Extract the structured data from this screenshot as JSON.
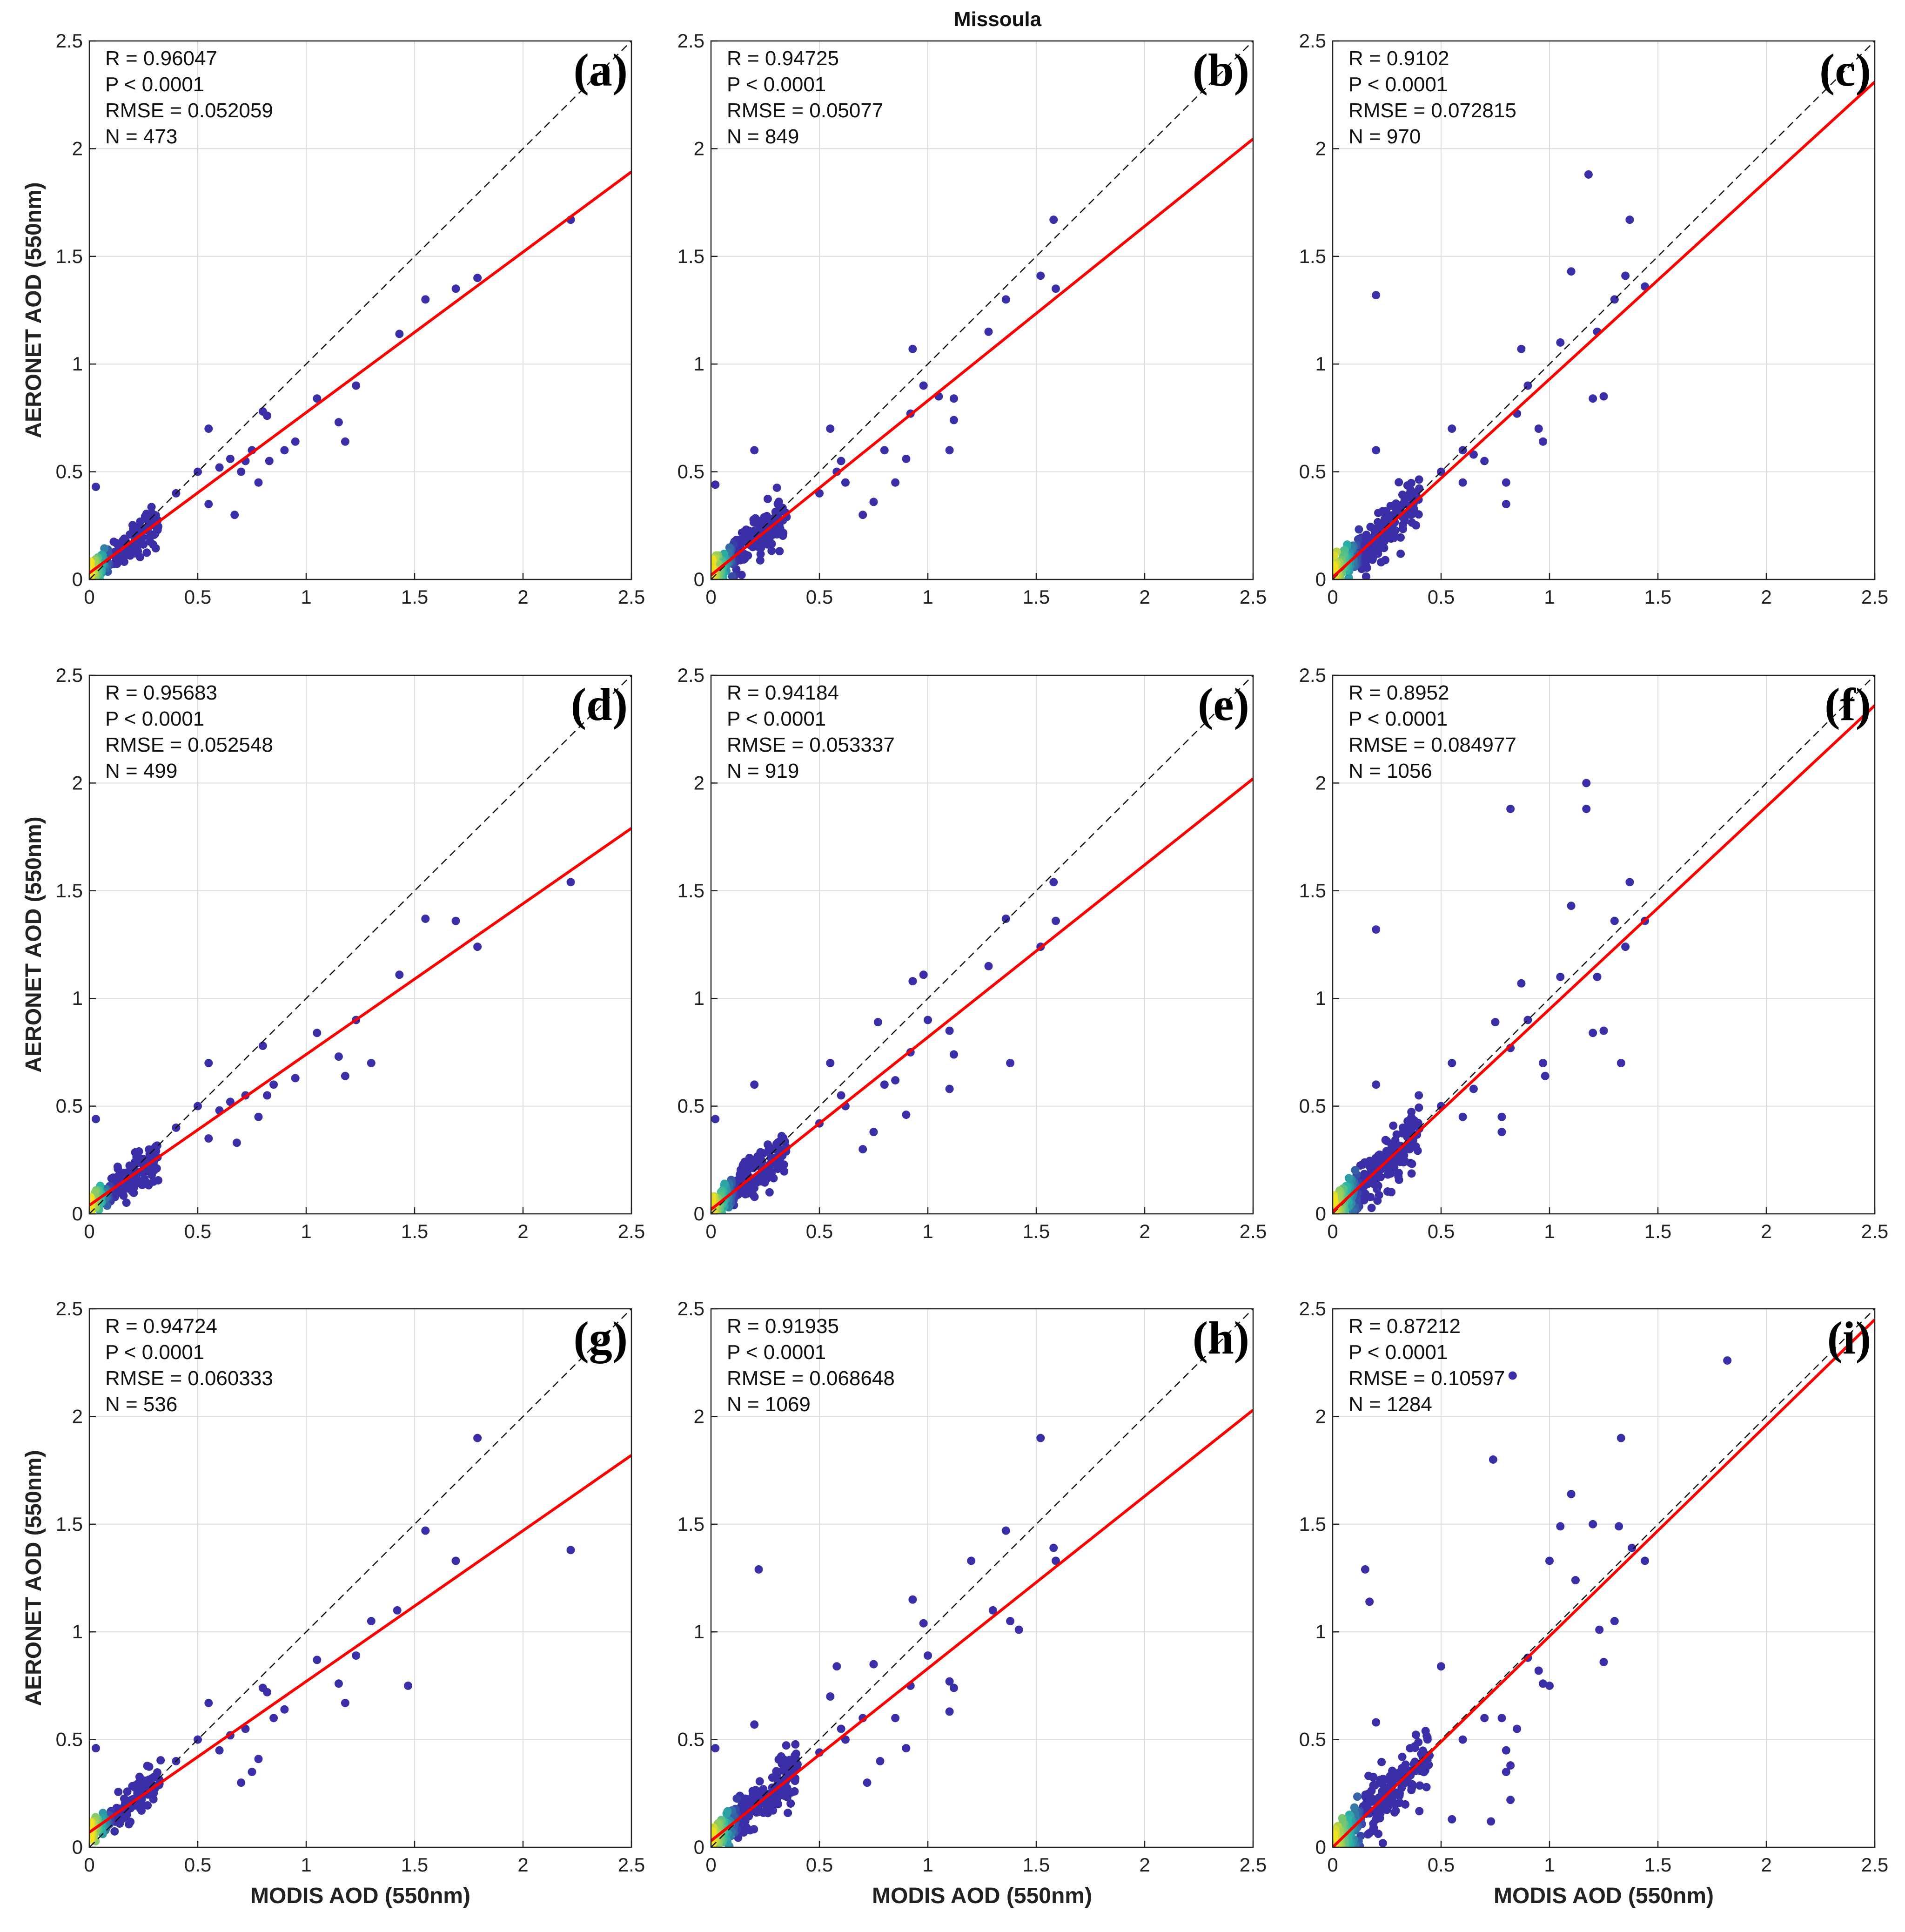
{
  "figure_title": "Missoula",
  "colors": {
    "fit_line": "#ff0000",
    "identity_line": "#111111",
    "point": "#3b2fa8",
    "grid": "#dcdcdc",
    "axis": "#222222",
    "density_low": "#3b2fa8",
    "density_mid": "#2bb6a5",
    "density_high": "#f4e21f"
  },
  "chart_data": [
    {
      "type": "scatter",
      "panel": "(a)",
      "title": "Missoula",
      "xlabel": "",
      "ylabel": "AERONET AOD (550nm)",
      "xlim": [
        0,
        2.5
      ],
      "ylim": [
        0,
        2.5
      ],
      "xticks": [
        "0",
        "0.5",
        "1",
        "1.5",
        "2",
        "2.5"
      ],
      "yticks": [
        "0",
        "0.5",
        "1",
        "1.5",
        "2",
        "2.5"
      ],
      "stats": [
        "R = 0.96047",
        "P < 0.0001",
        "RMSE = 0.052059",
        "N = 473"
      ],
      "fit": {
        "slope": 0.745,
        "intercept": 0.03
      },
      "dense": {
        "xmax": 0.32,
        "count": 180,
        "spread": 0.045
      },
      "highlight_points": [
        [
          0.03,
          0.43
        ],
        [
          0.55,
          0.7
        ],
        [
          0.8,
          0.78
        ],
        [
          0.82,
          0.76
        ],
        [
          1.05,
          0.84
        ],
        [
          1.15,
          0.73
        ],
        [
          1.18,
          0.64
        ],
        [
          1.23,
          0.9
        ],
        [
          1.43,
          1.14
        ],
        [
          1.55,
          1.3
        ],
        [
          1.69,
          1.35
        ],
        [
          1.79,
          1.4
        ],
        [
          2.22,
          1.67
        ],
        [
          0.5,
          0.5
        ],
        [
          0.6,
          0.52
        ],
        [
          0.65,
          0.56
        ],
        [
          0.67,
          0.3
        ],
        [
          0.72,
          0.55
        ],
        [
          0.78,
          0.45
        ],
        [
          0.83,
          0.55
        ],
        [
          0.95,
          0.64
        ],
        [
          0.4,
          0.4
        ],
        [
          0.55,
          0.35
        ],
        [
          0.7,
          0.5
        ],
        [
          0.75,
          0.6
        ],
        [
          0.9,
          0.6
        ]
      ]
    },
    {
      "type": "scatter",
      "panel": "(b)",
      "title": "Missoula",
      "xlabel": "",
      "ylabel": "",
      "xlim": [
        0,
        2.5
      ],
      "ylim": [
        0,
        2.5
      ],
      "xticks": [
        "0",
        "0.5",
        "1",
        "1.5",
        "2",
        "2.5"
      ],
      "yticks": [
        "0",
        "0.5",
        "1",
        "1.5",
        "2",
        "2.5"
      ],
      "stats": [
        "R = 0.94725",
        "P < 0.0001",
        "RMSE = 0.05077",
        "N = 849"
      ],
      "fit": {
        "slope": 0.81,
        "intercept": 0.02
      },
      "dense": {
        "xmax": 0.35,
        "count": 260,
        "spread": 0.05
      },
      "highlight_points": [
        [
          0.02,
          0.44
        ],
        [
          0.2,
          0.6
        ],
        [
          0.55,
          0.7
        ],
        [
          0.6,
          0.55
        ],
        [
          0.7,
          0.3
        ],
        [
          0.75,
          0.36
        ],
        [
          0.8,
          0.6
        ],
        [
          0.85,
          0.45
        ],
        [
          0.9,
          0.56
        ],
        [
          0.92,
          0.77
        ],
        [
          0.93,
          1.07
        ],
        [
          0.98,
          0.9
        ],
        [
          1.05,
          0.85
        ],
        [
          1.1,
          0.6
        ],
        [
          1.12,
          0.74
        ],
        [
          1.12,
          0.84
        ],
        [
          1.28,
          1.15
        ],
        [
          1.36,
          1.3
        ],
        [
          1.52,
          1.41
        ],
        [
          1.58,
          1.67
        ],
        [
          1.59,
          1.35
        ],
        [
          0.5,
          0.4
        ],
        [
          0.58,
          0.5
        ],
        [
          0.62,
          0.45
        ]
      ]
    },
    {
      "type": "scatter",
      "panel": "(c)",
      "title": "Missoula",
      "xlabel": "",
      "ylabel": "",
      "xlim": [
        0,
        2.5
      ],
      "ylim": [
        0,
        2.5
      ],
      "xticks": [
        "0",
        "0.5",
        "1",
        "1.5",
        "2",
        "2.5"
      ],
      "yticks": [
        "0",
        "0.5",
        "1",
        "1.5",
        "2",
        "2.5"
      ],
      "stats": [
        "R = 0.9102",
        "P < 0.0001",
        "RMSE = 0.072815",
        "N = 970"
      ],
      "fit": {
        "slope": 0.92,
        "intercept": 0.01
      },
      "dense": {
        "xmax": 0.4,
        "count": 300,
        "spread": 0.06
      },
      "highlight_points": [
        [
          0.2,
          1.32
        ],
        [
          0.2,
          0.6
        ],
        [
          0.5,
          0.5
        ],
        [
          0.55,
          0.7
        ],
        [
          0.6,
          0.45
        ],
        [
          0.7,
          0.55
        ],
        [
          0.8,
          0.45
        ],
        [
          0.8,
          0.35
        ],
        [
          0.85,
          0.77
        ],
        [
          0.87,
          1.07
        ],
        [
          0.9,
          0.9
        ],
        [
          0.95,
          0.7
        ],
        [
          0.97,
          0.64
        ],
        [
          1.05,
          1.1
        ],
        [
          1.1,
          1.43
        ],
        [
          1.18,
          1.88
        ],
        [
          1.2,
          0.84
        ],
        [
          1.22,
          1.15
        ],
        [
          1.25,
          0.85
        ],
        [
          1.3,
          1.3
        ],
        [
          1.35,
          1.41
        ],
        [
          1.37,
          1.67
        ],
        [
          1.44,
          1.36
        ],
        [
          0.6,
          0.6
        ],
        [
          0.65,
          0.58
        ]
      ]
    },
    {
      "type": "scatter",
      "panel": "(d)",
      "title": "Missoula",
      "xlabel": "",
      "ylabel": "AERONET AOD (550nm)",
      "xlim": [
        0,
        2.5
      ],
      "ylim": [
        0,
        2.5
      ],
      "xticks": [
        "0",
        "0.5",
        "1",
        "1.5",
        "2",
        "2.5"
      ],
      "yticks": [
        "0",
        "0.5",
        "1",
        "1.5",
        "2",
        "2.5"
      ],
      "stats": [
        "R = 0.95683",
        "P < 0.0001",
        "RMSE = 0.052548",
        "N = 499"
      ],
      "fit": {
        "slope": 0.7,
        "intercept": 0.04
      },
      "dense": {
        "xmax": 0.32,
        "count": 190,
        "spread": 0.045
      },
      "highlight_points": [
        [
          0.03,
          0.44
        ],
        [
          0.55,
          0.7
        ],
        [
          0.5,
          0.5
        ],
        [
          0.6,
          0.48
        ],
        [
          0.65,
          0.52
        ],
        [
          0.68,
          0.33
        ],
        [
          0.72,
          0.55
        ],
        [
          0.78,
          0.45
        ],
        [
          0.8,
          0.78
        ],
        [
          0.82,
          0.55
        ],
        [
          0.85,
          0.6
        ],
        [
          0.95,
          0.63
        ],
        [
          1.05,
          0.84
        ],
        [
          1.15,
          0.73
        ],
        [
          1.18,
          0.64
        ],
        [
          1.23,
          0.9
        ],
        [
          1.3,
          0.7
        ],
        [
          1.43,
          1.11
        ],
        [
          1.55,
          1.37
        ],
        [
          1.69,
          1.36
        ],
        [
          1.79,
          1.24
        ],
        [
          2.22,
          1.54
        ],
        [
          0.4,
          0.4
        ],
        [
          0.55,
          0.35
        ]
      ]
    },
    {
      "type": "scatter",
      "panel": "(e)",
      "title": "Missoula",
      "xlabel": "",
      "ylabel": "",
      "xlim": [
        0,
        2.5
      ],
      "ylim": [
        0,
        2.5
      ],
      "xticks": [
        "0",
        "0.5",
        "1",
        "1.5",
        "2",
        "2.5"
      ],
      "yticks": [
        "0",
        "0.5",
        "1",
        "1.5",
        "2",
        "2.5"
      ],
      "stats": [
        "R = 0.94184",
        "P < 0.0001",
        "RMSE = 0.053337",
        "N = 919"
      ],
      "fit": {
        "slope": 0.8,
        "intercept": 0.02
      },
      "dense": {
        "xmax": 0.35,
        "count": 280,
        "spread": 0.05
      },
      "highlight_points": [
        [
          0.02,
          0.44
        ],
        [
          0.2,
          0.6
        ],
        [
          0.55,
          0.7
        ],
        [
          0.6,
          0.55
        ],
        [
          0.7,
          0.3
        ],
        [
          0.75,
          0.38
        ],
        [
          0.77,
          0.89
        ],
        [
          0.8,
          0.6
        ],
        [
          0.85,
          0.62
        ],
        [
          0.9,
          0.46
        ],
        [
          0.92,
          0.75
        ],
        [
          0.93,
          1.08
        ],
        [
          0.98,
          1.11
        ],
        [
          1.0,
          0.9
        ],
        [
          1.1,
          0.85
        ],
        [
          1.1,
          0.58
        ],
        [
          1.12,
          0.74
        ],
        [
          1.28,
          1.15
        ],
        [
          1.36,
          1.37
        ],
        [
          1.38,
          0.7
        ],
        [
          1.52,
          1.24
        ],
        [
          1.58,
          1.54
        ],
        [
          1.59,
          1.36
        ],
        [
          0.5,
          0.42
        ],
        [
          0.62,
          0.5
        ]
      ]
    },
    {
      "type": "scatter",
      "panel": "(f)",
      "title": "Missoula",
      "xlabel": "",
      "ylabel": "",
      "xlim": [
        0,
        2.5
      ],
      "ylim": [
        0,
        2.5
      ],
      "xticks": [
        "0",
        "0.5",
        "1",
        "1.5",
        "2",
        "2.5"
      ],
      "yticks": [
        "0",
        "0.5",
        "1",
        "1.5",
        "2",
        "2.5"
      ],
      "stats": [
        "R = 0.8952",
        "P < 0.0001",
        "RMSE = 0.084977",
        "N = 1056"
      ],
      "fit": {
        "slope": 0.94,
        "intercept": 0.01
      },
      "dense": {
        "xmax": 0.4,
        "count": 320,
        "spread": 0.06
      },
      "highlight_points": [
        [
          0.2,
          1.32
        ],
        [
          0.2,
          0.6
        ],
        [
          0.5,
          0.5
        ],
        [
          0.55,
          0.7
        ],
        [
          0.6,
          0.45
        ],
        [
          0.75,
          0.89
        ],
        [
          0.78,
          0.45
        ],
        [
          0.78,
          0.38
        ],
        [
          0.82,
          1.88
        ],
        [
          0.82,
          0.77
        ],
        [
          0.87,
          1.07
        ],
        [
          0.9,
          0.9
        ],
        [
          0.97,
          0.7
        ],
        [
          0.98,
          0.64
        ],
        [
          1.05,
          1.1
        ],
        [
          1.1,
          1.43
        ],
        [
          1.17,
          2.0
        ],
        [
          1.17,
          1.88
        ],
        [
          1.2,
          0.84
        ],
        [
          1.22,
          1.1
        ],
        [
          1.25,
          0.85
        ],
        [
          1.3,
          1.36
        ],
        [
          1.33,
          0.7
        ],
        [
          1.35,
          1.24
        ],
        [
          1.37,
          1.54
        ],
        [
          1.44,
          1.36
        ],
        [
          0.65,
          0.58
        ]
      ]
    },
    {
      "type": "scatter",
      "panel": "(g)",
      "title": "Missoula",
      "xlabel": "MODIS AOD (550nm)",
      "ylabel": "AERONET AOD (550nm)",
      "xlim": [
        0,
        2.5
      ],
      "ylim": [
        0,
        2.5
      ],
      "xticks": [
        "0",
        "0.5",
        "1",
        "1.5",
        "2",
        "2.5"
      ],
      "yticks": [
        "0",
        "0.5",
        "1",
        "1.5",
        "2",
        "2.5"
      ],
      "stats": [
        "R = 0.94724",
        "P < 0.0001",
        "RMSE = 0.060333",
        "N = 536"
      ],
      "fit": {
        "slope": 0.7,
        "intercept": 0.07
      },
      "dense": {
        "xmax": 0.33,
        "count": 200,
        "spread": 0.045
      },
      "highlight_points": [
        [
          0.03,
          0.46
        ],
        [
          0.55,
          0.67
        ],
        [
          0.5,
          0.5
        ],
        [
          0.6,
          0.45
        ],
        [
          0.65,
          0.52
        ],
        [
          0.7,
          0.3
        ],
        [
          0.72,
          0.55
        ],
        [
          0.75,
          0.35
        ],
        [
          0.78,
          0.41
        ],
        [
          0.8,
          0.74
        ],
        [
          0.82,
          0.72
        ],
        [
          0.85,
          0.6
        ],
        [
          0.9,
          0.64
        ],
        [
          1.05,
          0.87
        ],
        [
          1.15,
          0.76
        ],
        [
          1.18,
          0.67
        ],
        [
          1.23,
          0.89
        ],
        [
          1.3,
          1.05
        ],
        [
          1.42,
          1.1
        ],
        [
          1.47,
          0.75
        ],
        [
          1.55,
          1.47
        ],
        [
          1.69,
          1.33
        ],
        [
          1.79,
          1.9
        ],
        [
          2.22,
          1.38
        ],
        [
          0.4,
          0.4
        ]
      ]
    },
    {
      "type": "scatter",
      "panel": "(h)",
      "title": "Missoula",
      "xlabel": "MODIS AOD (550nm)",
      "ylabel": "",
      "xlim": [
        0,
        2.5
      ],
      "ylim": [
        0,
        2.5
      ],
      "xticks": [
        "0",
        "0.5",
        "1",
        "1.5",
        "2",
        "2.5"
      ],
      "yticks": [
        "0",
        "0.5",
        "1",
        "1.5",
        "2",
        "2.5"
      ],
      "stats": [
        "R = 0.91935",
        "P < 0.0001",
        "RMSE = 0.068648",
        "N = 1069"
      ],
      "fit": {
        "slope": 0.8,
        "intercept": 0.03
      },
      "dense": {
        "xmax": 0.4,
        "count": 330,
        "spread": 0.055
      },
      "highlight_points": [
        [
          0.22,
          1.29
        ],
        [
          0.02,
          0.46
        ],
        [
          0.2,
          0.57
        ],
        [
          0.55,
          0.7
        ],
        [
          0.58,
          0.84
        ],
        [
          0.6,
          0.55
        ],
        [
          0.7,
          0.6
        ],
        [
          0.72,
          0.3
        ],
        [
          0.75,
          0.85
        ],
        [
          0.78,
          0.4
        ],
        [
          0.85,
          0.6
        ],
        [
          0.9,
          0.46
        ],
        [
          0.92,
          0.75
        ],
        [
          0.93,
          1.15
        ],
        [
          0.98,
          1.04
        ],
        [
          1.0,
          0.89
        ],
        [
          1.1,
          0.77
        ],
        [
          1.1,
          0.63
        ],
        [
          1.12,
          0.74
        ],
        [
          1.2,
          1.33
        ],
        [
          1.3,
          1.1
        ],
        [
          1.36,
          1.47
        ],
        [
          1.38,
          1.05
        ],
        [
          1.42,
          1.01
        ],
        [
          1.52,
          1.9
        ],
        [
          1.58,
          1.39
        ],
        [
          1.59,
          1.33
        ],
        [
          0.5,
          0.44
        ],
        [
          0.62,
          0.5
        ]
      ]
    },
    {
      "type": "scatter",
      "panel": "(i)",
      "title": "Missoula",
      "xlabel": "MODIS AOD (550nm)",
      "ylabel": "",
      "xlim": [
        0,
        2.5
      ],
      "ylim": [
        0,
        2.5
      ],
      "xticks": [
        "0",
        "0.5",
        "1",
        "1.5",
        "2",
        "2.5"
      ],
      "yticks": [
        "0",
        "0.5",
        "1",
        "1.5",
        "2",
        "2.5"
      ],
      "stats": [
        "R = 0.87212",
        "P < 0.0001",
        "RMSE = 0.10597",
        "N = 1284"
      ],
      "fit": {
        "slope": 0.98,
        "intercept": 0.0
      },
      "dense": {
        "xmax": 0.45,
        "count": 380,
        "spread": 0.065
      },
      "highlight_points": [
        [
          0.15,
          1.29
        ],
        [
          0.17,
          1.14
        ],
        [
          0.83,
          2.19
        ],
        [
          1.82,
          2.26
        ],
        [
          0.74,
          1.8
        ],
        [
          1.1,
          1.64
        ],
        [
          1.0,
          1.33
        ],
        [
          1.05,
          1.49
        ],
        [
          1.2,
          1.5
        ],
        [
          1.33,
          1.9
        ],
        [
          1.3,
          1.05
        ],
        [
          1.32,
          1.49
        ],
        [
          1.38,
          1.39
        ],
        [
          1.44,
          1.33
        ],
        [
          1.23,
          1.01
        ],
        [
          1.25,
          0.86
        ],
        [
          1.12,
          1.24
        ],
        [
          0.5,
          0.84
        ],
        [
          0.6,
          0.5
        ],
        [
          0.7,
          0.6
        ],
        [
          0.73,
          0.12
        ],
        [
          0.78,
          0.6
        ],
        [
          0.8,
          0.35
        ],
        [
          0.82,
          0.22
        ],
        [
          0.85,
          0.55
        ],
        [
          0.9,
          0.88
        ],
        [
          0.95,
          0.82
        ],
        [
          0.97,
          0.76
        ],
        [
          1.0,
          0.75
        ],
        [
          0.8,
          0.45
        ],
        [
          0.82,
          0.38
        ],
        [
          0.2,
          0.58
        ],
        [
          0.55,
          0.13
        ]
      ]
    }
  ]
}
